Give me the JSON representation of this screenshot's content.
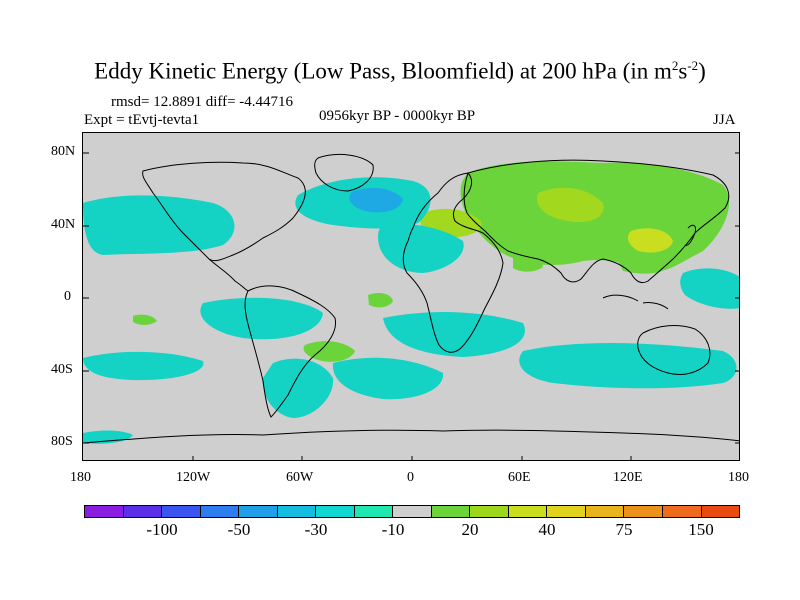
{
  "title": {
    "main": "Eddy Kinetic Energy (Low Pass, Bloomfield) at 200 hPa (in m",
    "sup1": "2",
    "mid": "s",
    "sup2": "-2",
    "end": ")"
  },
  "stats": "rmsd= 12.8891 diff= -4.44716",
  "expt": "Expt = tEvtj-tevta1",
  "period": "0956kyr BP - 0000kyr BP",
  "season": "JJA",
  "lat_labels": [
    "80N",
    "40N",
    "0",
    "40S",
    "80S"
  ],
  "lon_labels": [
    "180",
    "120W",
    "60W",
    "0",
    "60E",
    "120E",
    "180"
  ],
  "colorbar": {
    "colors": [
      "#8a1ee0",
      "#5b2ee8",
      "#3a55ee",
      "#2c7ef0",
      "#1e9fe8",
      "#14bde0",
      "#12d6d0",
      "#1ee8b0",
      "#cfcfcf",
      "#6ad43a",
      "#9ed61e",
      "#c9de1e",
      "#e0d21e",
      "#e8b41e",
      "#ec901e",
      "#ee6a1e",
      "#e84a12"
    ],
    "labels": [
      "-100",
      "-50",
      "-30",
      "-10",
      "20",
      "40",
      "75",
      "150"
    ]
  }
}
